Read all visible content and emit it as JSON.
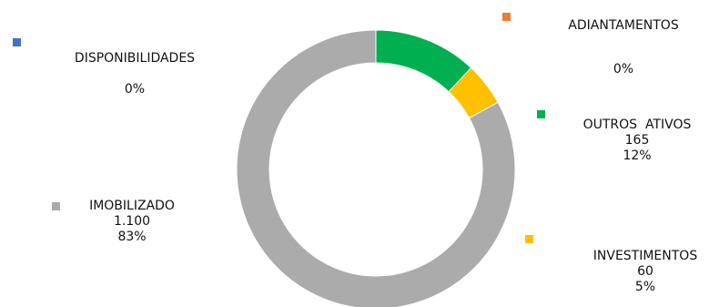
{
  "chart_data": {
    "type": "pie",
    "variant": "doughnut",
    "slices": [
      {
        "name": "DISPONIBILIDADES",
        "value": null,
        "value_label": "",
        "percent": 0,
        "percent_label": "0%",
        "color": "#4472C4"
      },
      {
        "name": "ADIANTAMENTOS",
        "value": null,
        "value_label": "",
        "percent": 0,
        "percent_label": "0%",
        "color": "#ED7D31"
      },
      {
        "name": "OUTROS  ATIVOS",
        "value": 165,
        "value_label": "165",
        "percent": 12,
        "percent_label": "12%",
        "color": "#00B050"
      },
      {
        "name": "INVESTIMENTOS",
        "value": 60,
        "value_label": "60",
        "percent": 5,
        "percent_label": "5%",
        "color": "#FFC000"
      },
      {
        "name": "IMOBILIZADO",
        "value": 1100,
        "value_label": "1.100",
        "percent": 83,
        "percent_label": "83%",
        "color": "#ABABAB"
      }
    ],
    "start_angle": "top",
    "direction": "clockwise",
    "legend": "labels beside slices"
  }
}
